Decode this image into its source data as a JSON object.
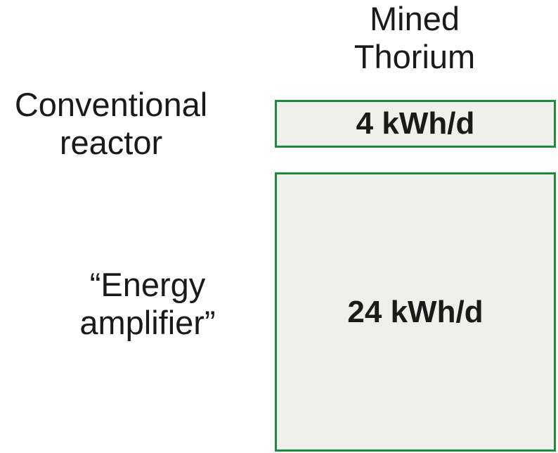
{
  "column_header": {
    "line1": "Mined",
    "line2": "Thorium"
  },
  "rows": [
    {
      "label_line1": "Conventional",
      "label_line2": "reactor",
      "value": "4 kWh/d",
      "value_kwh_per_day": 4
    },
    {
      "label_line1": "“Energy",
      "label_line2": "amplifier”",
      "value": "24 kWh/d",
      "value_kwh_per_day": 24
    }
  ],
  "colors": {
    "box_border": "#1e8b3c",
    "box_fill": "#efefeb",
    "text": "#1a1a1a"
  }
}
